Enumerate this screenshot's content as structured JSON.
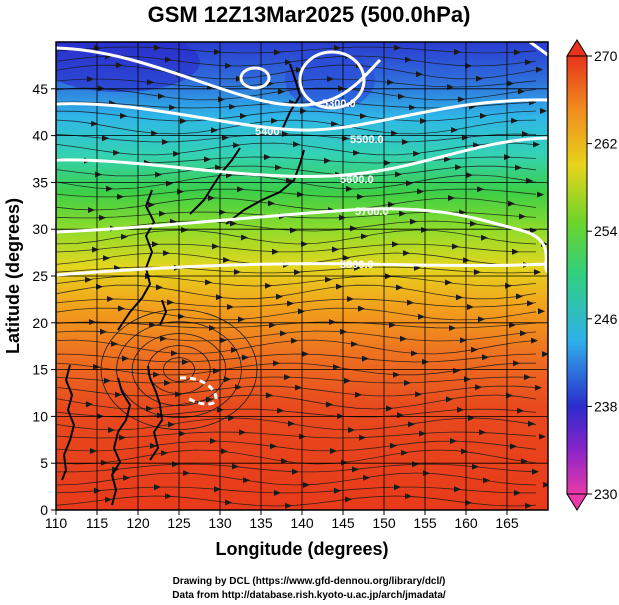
{
  "title": "GSM 12Z13Mar2025 (500.0hPa)",
  "xlabel": "Longitude (degrees)",
  "ylabel": "Latitude  (degrees)",
  "x_ticks": [
    "110",
    "115",
    "120",
    "125",
    "130",
    "135",
    "140",
    "145",
    "150",
    "155",
    "160",
    "165"
  ],
  "y_ticks": [
    "0",
    "5",
    "10",
    "15",
    "20",
    "25",
    "30",
    "35",
    "40",
    "45"
  ],
  "colorbar_ticks": [
    "230",
    "238",
    "246",
    "254",
    "262",
    "270"
  ],
  "contour_labels": [
    "5300.0",
    "5400",
    "5500.0",
    "5600.0",
    "5700.0",
    "5800.0"
  ],
  "footer_line1": "Drawing by DCL (https://www.gfd-dennou.org/library/dcl/)",
  "footer_line2": "Data from http://database.rish.kyoto-u.ac.jp/arch/jmadata/",
  "chart_data": {
    "type": "heatmap",
    "field": "temperature shading with geopotential height contours and wind streamlines",
    "x_range": [
      110,
      170
    ],
    "y_range": [
      0,
      50
    ],
    "color_range": [
      230,
      270
    ],
    "temperature_by_latitude": [
      {
        "lat": 0,
        "value": 268
      },
      {
        "lat": 10,
        "value": 267
      },
      {
        "lat": 15,
        "value": 266
      },
      {
        "lat": 20,
        "value": 264
      },
      {
        "lat": 25,
        "value": 260
      },
      {
        "lat": 30,
        "value": 256
      },
      {
        "lat": 35,
        "value": 252
      },
      {
        "lat": 40,
        "value": 248
      },
      {
        "lat": 45,
        "value": 242
      },
      {
        "lat": 50,
        "value": 238
      }
    ],
    "contour_levels": [
      5300,
      5400,
      5500,
      5600,
      5700,
      5800
    ],
    "colors": {
      "warm": "#e8341c",
      "cold": "#2233c8",
      "contour": "#ffffff",
      "coastline": "#000000"
    }
  }
}
